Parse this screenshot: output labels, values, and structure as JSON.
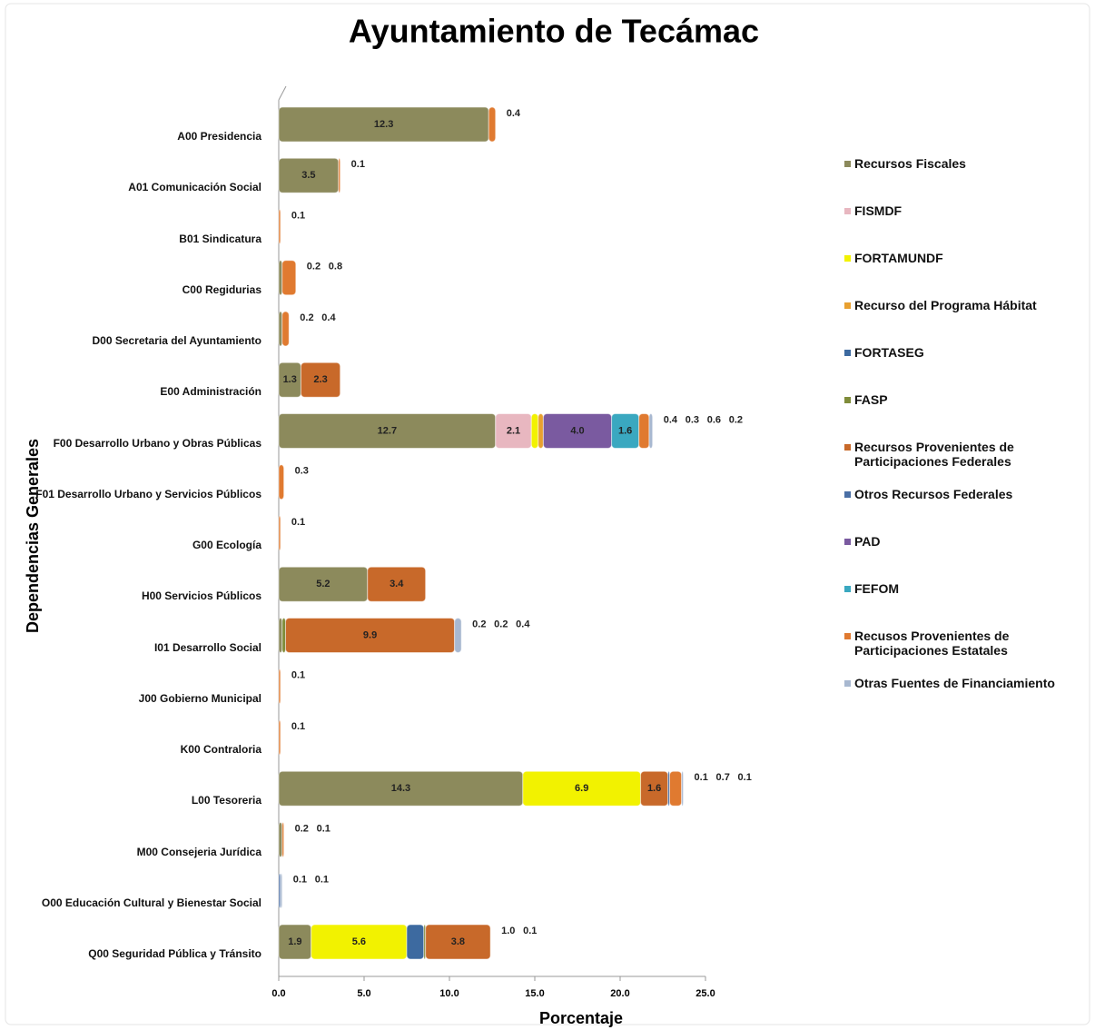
{
  "chart_data": {
    "type": "stacked-bar-horizontal",
    "title": "Ayuntamiento de Tecámac",
    "x_label": "Porcentaje",
    "y_label": "Dependencias Generales",
    "categories": [
      "A00 Presidencia",
      "A01 Comunicación Social",
      "B01 Sindicatura",
      "C00 Regidurias",
      "D00 Secretaria del Ayuntamiento",
      "E00 Administración",
      "F00 Desarrollo Urbano y Obras Públicas",
      "F01 Desarrollo Urbano y Servicios Públicos",
      "G00 Ecología",
      "H00 Servicios Públicos",
      "I01 Desarrollo Social",
      "J00 Gobierno Municipal",
      "K00 Contraloria",
      "L00 Tesoreria",
      "M00 Consejeria Jurídica",
      "O00 Educación Cultural y Bienestar Social",
      "Q00 Seguridad Pública y Tránsito"
    ],
    "xlim": [
      0,
      25
    ],
    "xticks": [
      {
        "value": 0,
        "label": "0.0"
      },
      {
        "value": 5,
        "label": "5.0"
      },
      {
        "value": 10,
        "label": "10.0"
      },
      {
        "value": 15,
        "label": "15.0"
      },
      {
        "value": 20,
        "label": "20.0"
      },
      {
        "value": 25,
        "label": "25.0"
      }
    ],
    "series": [
      {
        "name": "Recursos Fiscales",
        "color": "#8c8a5c",
        "values": [
          12.3,
          3.5,
          null,
          0.2,
          0.2,
          1.3,
          12.7,
          null,
          null,
          5.2,
          0.2,
          null,
          null,
          14.3,
          0.2,
          null,
          1.9
        ]
      },
      {
        "name": "FISMDF",
        "color": "#e8b7c0",
        "values": [
          null,
          null,
          null,
          null,
          null,
          null,
          2.1,
          null,
          null,
          null,
          null,
          null,
          null,
          null,
          null,
          null,
          null
        ]
      },
      {
        "name": "FORTAMUNDF",
        "color": "#f2f200",
        "values": [
          null,
          null,
          null,
          null,
          null,
          null,
          0.4,
          null,
          null,
          null,
          null,
          null,
          null,
          6.9,
          null,
          null,
          5.6
        ]
      },
      {
        "name": "Recurso del Programa Hábitat",
        "color": "#e8a030",
        "values": [
          null,
          null,
          null,
          null,
          null,
          null,
          0.3,
          null,
          null,
          null,
          null,
          null,
          null,
          null,
          null,
          null,
          null
        ]
      },
      {
        "name": "FORTASEG",
        "color": "#3d6aa0",
        "values": [
          null,
          null,
          null,
          null,
          null,
          null,
          null,
          null,
          null,
          null,
          null,
          null,
          null,
          null,
          null,
          null,
          1.0
        ],
        "value_labels": [
          null,
          null,
          null,
          null,
          null,
          null,
          null,
          null,
          null,
          null,
          null,
          null,
          null,
          null,
          null,
          null,
          "1.0"
        ]
      },
      {
        "name": "FASP",
        "color": "#7f8c3a",
        "values": [
          null,
          null,
          null,
          null,
          null,
          null,
          null,
          null,
          null,
          null,
          0.2,
          null,
          null,
          null,
          null,
          null,
          0.1
        ]
      },
      {
        "name": "Recursos Provenientes de Participaciones Federales",
        "color": "#c8692a",
        "values": [
          null,
          null,
          null,
          null,
          null,
          2.3,
          null,
          null,
          null,
          3.4,
          9.9,
          null,
          null,
          1.6,
          null,
          null,
          3.8
        ]
      },
      {
        "name": "Otros Recursos Federales",
        "color": "#4a6fa5",
        "values": [
          null,
          null,
          null,
          null,
          null,
          null,
          null,
          null,
          null,
          null,
          null,
          null,
          null,
          0.1,
          null,
          0.1,
          null
        ]
      },
      {
        "name": "PAD",
        "color": "#7a5aa0",
        "values": [
          null,
          null,
          null,
          null,
          null,
          null,
          4.0,
          null,
          null,
          null,
          null,
          null,
          null,
          null,
          null,
          null,
          null
        ],
        "value_labels": [
          null,
          null,
          null,
          null,
          null,
          null,
          "4.0",
          null,
          null,
          null,
          null,
          null,
          null,
          null,
          null,
          null,
          null
        ]
      },
      {
        "name": "FEFOM",
        "color": "#3aa8c0",
        "values": [
          null,
          null,
          null,
          null,
          null,
          null,
          1.6,
          null,
          null,
          null,
          null,
          null,
          null,
          null,
          null,
          null,
          null
        ]
      },
      {
        "name": "Recusos Provenientes de Participaciones Estatales",
        "color": "#e07a30",
        "values": [
          0.4,
          0.1,
          0.1,
          0.8,
          0.4,
          null,
          0.6,
          0.3,
          0.1,
          null,
          null,
          0.1,
          0.1,
          0.7,
          0.1,
          null,
          null
        ]
      },
      {
        "name": "Otras Fuentes de Financiamiento",
        "color": "#a8b8d0",
        "values": [
          null,
          null,
          null,
          null,
          null,
          null,
          0.2,
          null,
          null,
          null,
          0.4,
          null,
          null,
          0.1,
          null,
          0.1,
          null
        ]
      }
    ]
  }
}
